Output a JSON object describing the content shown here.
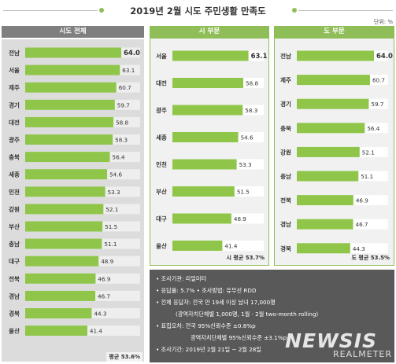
{
  "header": {
    "title": "2019년 2월 시도 주민생활 만족도",
    "unit": "단위: %"
  },
  "colors": {
    "bar_green": "#8fc64a",
    "track_left": "#eeeeee",
    "track_right": "#ffffff",
    "panel_left_bg": "#dcdcdc",
    "panel_right_bg": "#f1f1f1",
    "header_left": "#7f7f7f",
    "header_right": "#8fbe58",
    "notes_bg": "#595959"
  },
  "chart_data": [
    {
      "type": "bar",
      "title": "시도 전체",
      "categories": [
        "전남",
        "서울",
        "제주",
        "경기",
        "대전",
        "광주",
        "충북",
        "세종",
        "인천",
        "강원",
        "부산",
        "충남",
        "대구",
        "전북",
        "경남",
        "경북",
        "울산"
      ],
      "values": [
        64.0,
        63.1,
        60.7,
        59.7,
        58.8,
        58.3,
        56.4,
        54.6,
        53.3,
        52.1,
        51.5,
        51.1,
        48.9,
        46.9,
        46.7,
        44.3,
        41.4
      ],
      "labels": [
        "64.0",
        "63.1",
        "60.7",
        "59.7",
        "58.8",
        "58.3",
        "56.4",
        "54.6",
        "53.3",
        "52.1",
        "51.5",
        "51.1",
        "48.9",
        "46.9",
        "46.7",
        "44.3",
        "41.4"
      ],
      "average_label": "평균 53.6%"
    },
    {
      "type": "bar",
      "title": "시 부문",
      "categories": [
        "서울",
        "대전",
        "광주",
        "세종",
        "인천",
        "부산",
        "대구",
        "울산"
      ],
      "values": [
        63.1,
        58.8,
        58.3,
        54.6,
        53.3,
        51.5,
        48.9,
        41.4
      ],
      "labels": [
        "63.1",
        "58.8",
        "58.3",
        "54.6",
        "53.3",
        "51.5",
        "48.9",
        "41.4"
      ],
      "average_label": "시 평균 53.7%"
    },
    {
      "type": "bar",
      "title": "도 부문",
      "categories": [
        "전남",
        "제주",
        "경기",
        "충북",
        "강원",
        "충남",
        "전북",
        "경남",
        "경북"
      ],
      "values": [
        64.0,
        60.7,
        59.7,
        56.4,
        52.1,
        51.1,
        46.9,
        46.7,
        44.3
      ],
      "labels": [
        "64.0",
        "60.7",
        "59.7",
        "56.4",
        "52.1",
        "51.1",
        "46.9",
        "46.7",
        "44.3"
      ],
      "average_label": "도 평균 53.5%"
    }
  ],
  "notes": {
    "lines": [
      "• 조사기관: 리얼미터",
      "• 응답률: 5.7% • 조사방법: 유무선 RDD",
      "• 전체 응답자: 전국 만 19세 이상 남녀 17,000명",
      "(광역자치단체별 1,000명, 1월 · 2월 two-month rolling)",
      "• 표집오차: 전국 95%신뢰수준 ±0.8%p",
      "광역자치단체별 95%신뢰수준 ±3.1%p",
      "• 조사기간: 2019년 2월 21일 ~ 2월 28일"
    ]
  },
  "watermark": {
    "brand": "NEWSIS",
    "source": "REALMETER"
  }
}
